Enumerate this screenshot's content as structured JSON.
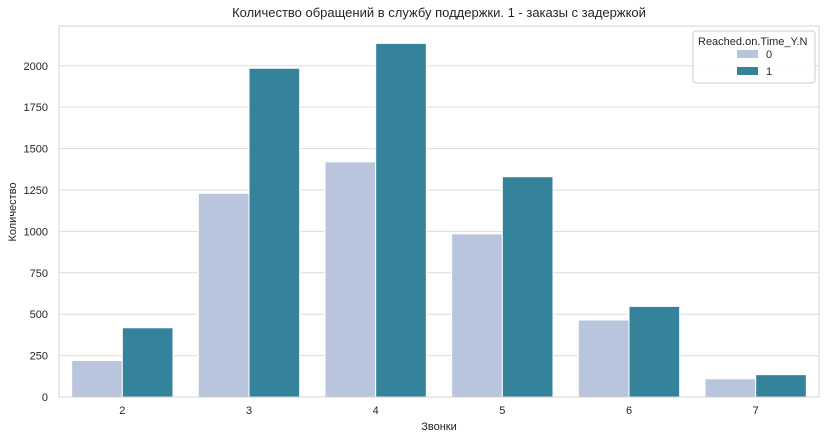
{
  "chart_data": {
    "type": "bar",
    "title": "Количество обращений в службу поддержки. 1 - заказы с задержкой",
    "xlabel": "Звонки",
    "ylabel": "Количество",
    "categories": [
      "2",
      "3",
      "4",
      "5",
      "6",
      "7"
    ],
    "yticks": [
      0,
      250,
      500,
      750,
      1000,
      1250,
      1500,
      1750,
      2000
    ],
    "ylim": [
      0,
      2240
    ],
    "grid": "horizontal",
    "legend": {
      "title": "Reached.on.Time_Y.N",
      "position": "top-right"
    },
    "series": [
      {
        "name": "0",
        "color": "#b8c5dc",
        "values": [
          220,
          1230,
          1420,
          985,
          465,
          110
        ]
      },
      {
        "name": "1",
        "color": "#35839b",
        "values": [
          418,
          1985,
          2135,
          1330,
          547,
          135
        ]
      }
    ]
  }
}
